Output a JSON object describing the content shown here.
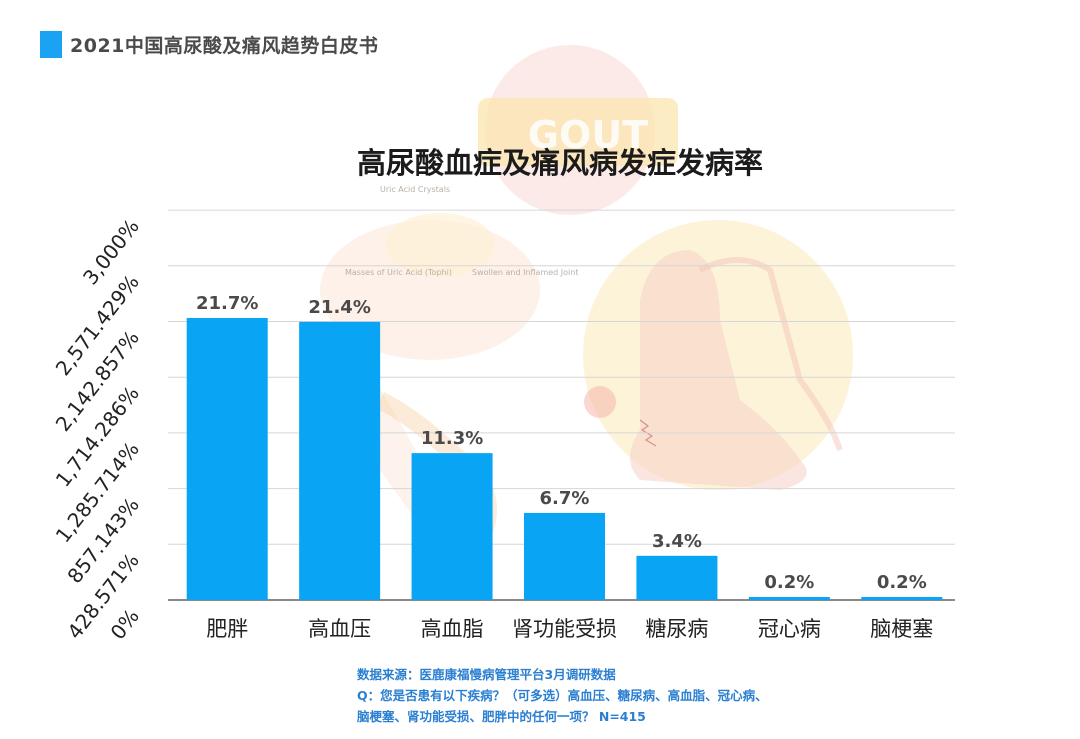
{
  "header": {
    "title": "2021中国高尿酸及痛风趋势白皮书",
    "accent_color": "#1aa3f2"
  },
  "background_art": {
    "badge_text": "GOUT",
    "labels": [
      "Uric Acid Crystals",
      "Masses of Uric Acid (Tophi)",
      "Swollen and Inflamed Joint"
    ]
  },
  "chart_data": {
    "type": "bar",
    "title": "高尿酸血症及痛风病发症发病率",
    "categories": [
      "肥胖",
      "高血压",
      "高血脂",
      "肾功能受损",
      "糖尿病",
      "冠心病",
      "脑梗塞"
    ],
    "values": [
      21.7,
      21.4,
      11.3,
      6.7,
      3.4,
      0.2,
      0.2
    ],
    "value_labels": [
      "21.7%",
      "21.4%",
      "11.3%",
      "6.7%",
      "3.4%",
      "0.2%",
      "0.2%"
    ],
    "yticks": [
      "0%",
      "428.571%",
      "857.143%",
      "1,285.714%",
      "1,714.286%",
      "2,142.857%",
      "2,571.429%",
      "3,000%"
    ],
    "ylim": [
      0,
      3000
    ],
    "grid": true,
    "bar_color": "#0aa4f5"
  },
  "footer": {
    "source": "数据来源：医鹿康福慢病管理平台3月调研数据",
    "question_line1": "Q：您是否患有以下疾病？（可多选）高血压、糖尿病、高血脂、冠心病、",
    "question_line2": "脑梗塞、肾功能受损、肥胖中的任何一项？ N=415"
  }
}
